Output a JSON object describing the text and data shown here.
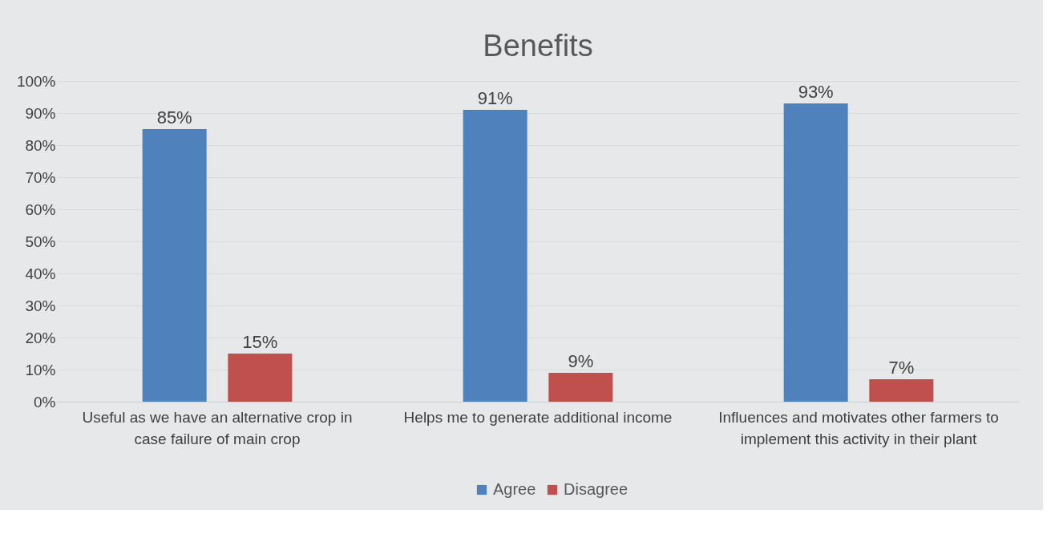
{
  "chart_data": {
    "type": "bar",
    "title": "Benefits",
    "categories": [
      "Useful as we have an alternative crop in case failure of main crop",
      "Helps me to generate additional income",
      "Influences and motivates other farmers to implement this activity in their plant"
    ],
    "series": [
      {
        "name": "Agree",
        "color": "#4f81bd",
        "values": [
          85,
          91,
          93
        ],
        "value_labels": [
          "85%",
          "91%",
          "93%"
        ]
      },
      {
        "name": "Disagree",
        "color": "#c0504d",
        "values": [
          15,
          9,
          7
        ],
        "value_labels": [
          "15%",
          "9%",
          "7%"
        ]
      }
    ],
    "ylim": [
      0,
      100
    ],
    "yticks": [
      {
        "value": 0,
        "label": "0%"
      },
      {
        "value": 10,
        "label": "10%"
      },
      {
        "value": 20,
        "label": "20%"
      },
      {
        "value": 30,
        "label": "30%"
      },
      {
        "value": 40,
        "label": "40%"
      },
      {
        "value": 50,
        "label": "50%"
      },
      {
        "value": 60,
        "label": "60%"
      },
      {
        "value": 70,
        "label": "70%"
      },
      {
        "value": 80,
        "label": "80%"
      },
      {
        "value": 90,
        "label": "90%"
      },
      {
        "value": 100,
        "label": "100%"
      }
    ],
    "grid": "y",
    "legend": "bottom"
  }
}
